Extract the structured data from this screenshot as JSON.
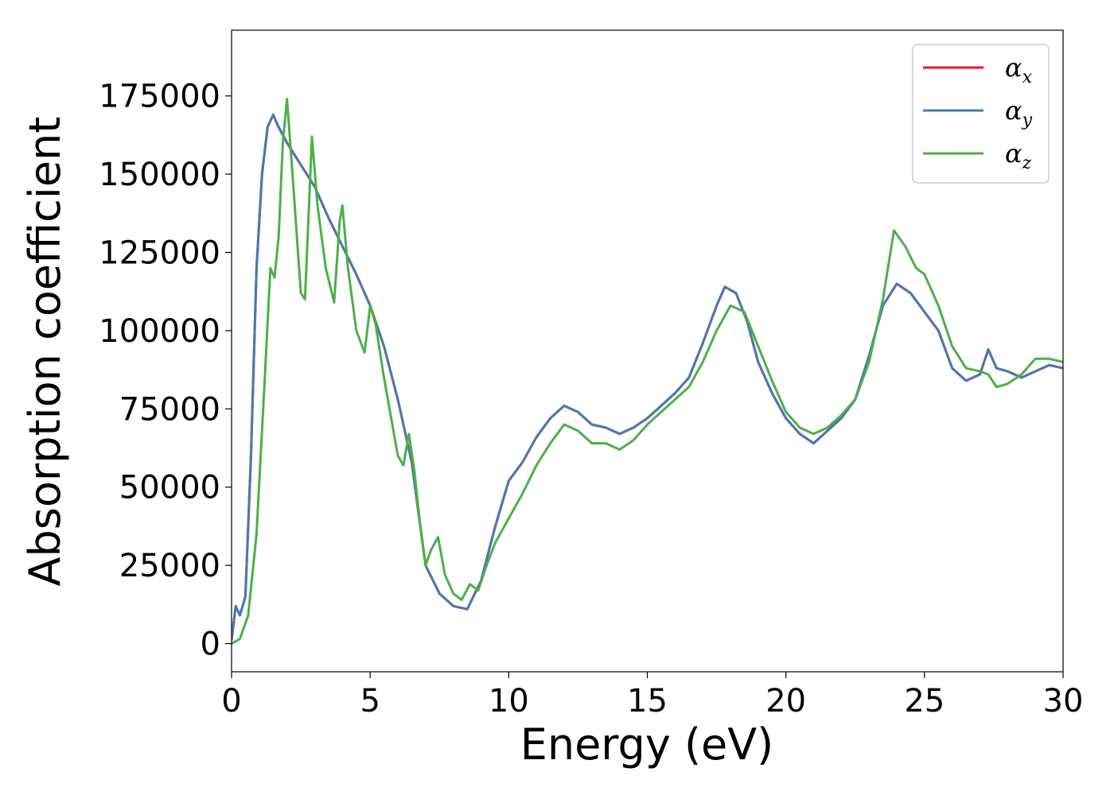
{
  "chart_data": {
    "type": "line",
    "title": "",
    "xlabel": "Energy (eV)",
    "ylabel": "Absorption coefficient",
    "xlim": [
      0,
      30
    ],
    "ylim": [
      -9000,
      196000
    ],
    "xticks": [
      0,
      5,
      10,
      15,
      20,
      25,
      30
    ],
    "yticks": [
      0,
      25000,
      50000,
      75000,
      100000,
      125000,
      150000,
      175000
    ],
    "grid": false,
    "legend_position": "top-right",
    "series": [
      {
        "name": "αx",
        "label_main": "α",
        "label_sub": "x",
        "color": "#e41a1c",
        "x": [
          0,
          0.15,
          0.3,
          0.5,
          0.7,
          0.9,
          1.1,
          1.3,
          1.5,
          1.7,
          2.0,
          2.5,
          3.0,
          3.5,
          4.0,
          4.5,
          5.0,
          5.5,
          6.0,
          6.5,
          7.0,
          7.5,
          8.0,
          8.5,
          9.0,
          9.5,
          10.0,
          10.5,
          11.0,
          11.5,
          12.0,
          12.5,
          13.0,
          13.5,
          14.0,
          14.5,
          15.0,
          15.5,
          16.0,
          16.5,
          17.0,
          17.5,
          17.8,
          18.2,
          18.6,
          19.0,
          19.5,
          20.0,
          20.5,
          21.0,
          21.5,
          22.0,
          22.5,
          23.0,
          23.5,
          24.0,
          24.5,
          25.0,
          25.5,
          26.0,
          26.5,
          27.0,
          27.3,
          27.6,
          28.0,
          28.5,
          29.0,
          29.5,
          30.0
        ],
        "y": [
          1000,
          12000,
          9000,
          15000,
          60000,
          120000,
          150000,
          165000,
          169000,
          165000,
          160000,
          153000,
          146000,
          136000,
          127000,
          118000,
          108000,
          95000,
          78000,
          58000,
          25000,
          16000,
          12000,
          11000,
          20000,
          37000,
          52000,
          58000,
          66000,
          72000,
          76000,
          74000,
          70000,
          69000,
          67000,
          69000,
          72000,
          76000,
          80000,
          85000,
          96000,
          108000,
          114000,
          112000,
          103000,
          90000,
          80000,
          72000,
          67000,
          64000,
          68000,
          72000,
          78000,
          92000,
          108000,
          115000,
          112000,
          106000,
          100000,
          88000,
          84000,
          86000,
          94000,
          88000,
          87000,
          85000,
          87000,
          89000,
          88000
        ]
      },
      {
        "name": "αy",
        "label_main": "α",
        "label_sub": "y",
        "color": "#4a78b3",
        "x": [
          0,
          0.15,
          0.3,
          0.5,
          0.7,
          0.9,
          1.1,
          1.3,
          1.5,
          1.7,
          2.0,
          2.5,
          3.0,
          3.5,
          4.0,
          4.5,
          5.0,
          5.5,
          6.0,
          6.5,
          7.0,
          7.5,
          8.0,
          8.5,
          9.0,
          9.5,
          10.0,
          10.5,
          11.0,
          11.5,
          12.0,
          12.5,
          13.0,
          13.5,
          14.0,
          14.5,
          15.0,
          15.5,
          16.0,
          16.5,
          17.0,
          17.5,
          17.8,
          18.2,
          18.6,
          19.0,
          19.5,
          20.0,
          20.5,
          21.0,
          21.5,
          22.0,
          22.5,
          23.0,
          23.5,
          24.0,
          24.5,
          25.0,
          25.5,
          26.0,
          26.5,
          27.0,
          27.3,
          27.6,
          28.0,
          28.5,
          29.0,
          29.5,
          30.0
        ],
        "y": [
          1000,
          12000,
          9000,
          15000,
          60000,
          120000,
          150000,
          165000,
          169000,
          165000,
          160000,
          153000,
          146000,
          136000,
          127000,
          118000,
          108000,
          95000,
          78000,
          58000,
          25000,
          16000,
          12000,
          11000,
          20000,
          37000,
          52000,
          58000,
          66000,
          72000,
          76000,
          74000,
          70000,
          69000,
          67000,
          69000,
          72000,
          76000,
          80000,
          85000,
          96000,
          108000,
          114000,
          112000,
          103000,
          90000,
          80000,
          72000,
          67000,
          64000,
          68000,
          72000,
          78000,
          92000,
          108000,
          115000,
          112000,
          106000,
          100000,
          88000,
          84000,
          86000,
          94000,
          88000,
          87000,
          85000,
          87000,
          89000,
          88000
        ]
      },
      {
        "name": "αz",
        "label_main": "α",
        "label_sub": "z",
        "color": "#4daf4a",
        "x": [
          0,
          0.3,
          0.6,
          0.9,
          1.2,
          1.4,
          1.55,
          1.7,
          1.85,
          2.0,
          2.2,
          2.5,
          2.65,
          2.9,
          3.1,
          3.4,
          3.7,
          3.9,
          4.0,
          4.2,
          4.5,
          4.8,
          5.0,
          5.2,
          5.5,
          6.0,
          6.2,
          6.4,
          6.6,
          6.8,
          7.0,
          7.2,
          7.45,
          7.7,
          8.0,
          8.3,
          8.6,
          8.9,
          9.2,
          9.5,
          10.0,
          10.5,
          11.0,
          11.5,
          12.0,
          12.5,
          13.0,
          13.5,
          14.0,
          14.5,
          15.0,
          15.5,
          16.0,
          16.5,
          17.0,
          17.5,
          18.0,
          18.5,
          19.0,
          19.5,
          20.0,
          20.5,
          21.0,
          21.5,
          22.0,
          22.5,
          23.0,
          23.5,
          23.9,
          24.3,
          24.7,
          25.0,
          25.5,
          26.0,
          26.5,
          27.0,
          27.3,
          27.6,
          28.0,
          28.5,
          29.0,
          29.5,
          30.0
        ],
        "y": [
          0,
          1500,
          9000,
          35000,
          85000,
          120000,
          117000,
          130000,
          160000,
          174000,
          150000,
          112000,
          110000,
          162000,
          140000,
          120000,
          109000,
          135000,
          140000,
          120000,
          100000,
          93000,
          108000,
          102000,
          85000,
          60000,
          57000,
          67000,
          55000,
          38000,
          25000,
          30000,
          34000,
          22000,
          16000,
          14000,
          19000,
          17000,
          25000,
          32000,
          40000,
          48000,
          57000,
          64000,
          70000,
          68000,
          64000,
          64000,
          62000,
          65000,
          70000,
          74000,
          78000,
          82000,
          90000,
          100000,
          108000,
          106000,
          95000,
          84000,
          74000,
          69000,
          67000,
          69000,
          73000,
          78000,
          90000,
          110000,
          132000,
          127000,
          120000,
          118000,
          108000,
          95000,
          88000,
          87000,
          86000,
          82000,
          83000,
          86000,
          91000,
          91000,
          90000
        ]
      }
    ]
  }
}
